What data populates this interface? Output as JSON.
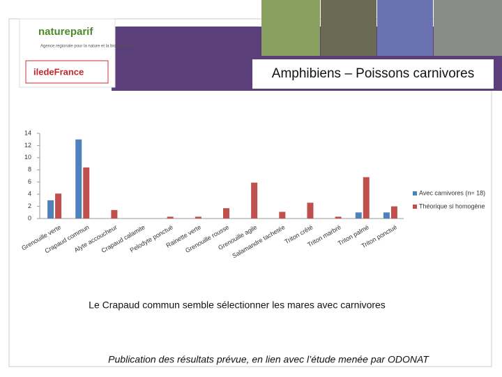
{
  "logo": {
    "name": "natureparif",
    "tagline": "Agence régionale pour la nature et la biodiversité",
    "region": "iledeFrance"
  },
  "chart_data": {
    "type": "bar",
    "title": "Amphibiens – Poissons carnivores",
    "categories": [
      "Grenouille verte",
      "Crapaud commun",
      "Alyte accoucheur",
      "Crapaud calamite",
      "Pelodyte ponctué",
      "Rainette verte",
      "Grenouille rousse",
      "Grenouille agile",
      "Salamandre tachetée",
      "Triton crêté",
      "Triton marbré",
      "Triton palmé",
      "Triton ponctué"
    ],
    "series": [
      {
        "name": "Avec carnivores (n= 18)",
        "color": "#4f81bd",
        "values": [
          3,
          13,
          0,
          0,
          0,
          0,
          0,
          0,
          0,
          0,
          0,
          1,
          1
        ]
      },
      {
        "name": "Théorique si homogène",
        "color": "#c0504d",
        "values": [
          4.1,
          8.4,
          1.4,
          0,
          0.3,
          0.3,
          1.7,
          5.9,
          1.1,
          2.6,
          0.3,
          6.8,
          2.0
        ]
      }
    ],
    "ylim": [
      0,
      14
    ],
    "yticks": [
      0,
      2,
      4,
      6,
      8,
      10,
      12,
      14
    ],
    "grid": false,
    "legend": "right"
  },
  "caption": "Le Crapaud commun semble sélectionner les mares avec carnivores",
  "footer": "Publication des résultats prévue, en lien avec l’étude menée par ODONAT"
}
